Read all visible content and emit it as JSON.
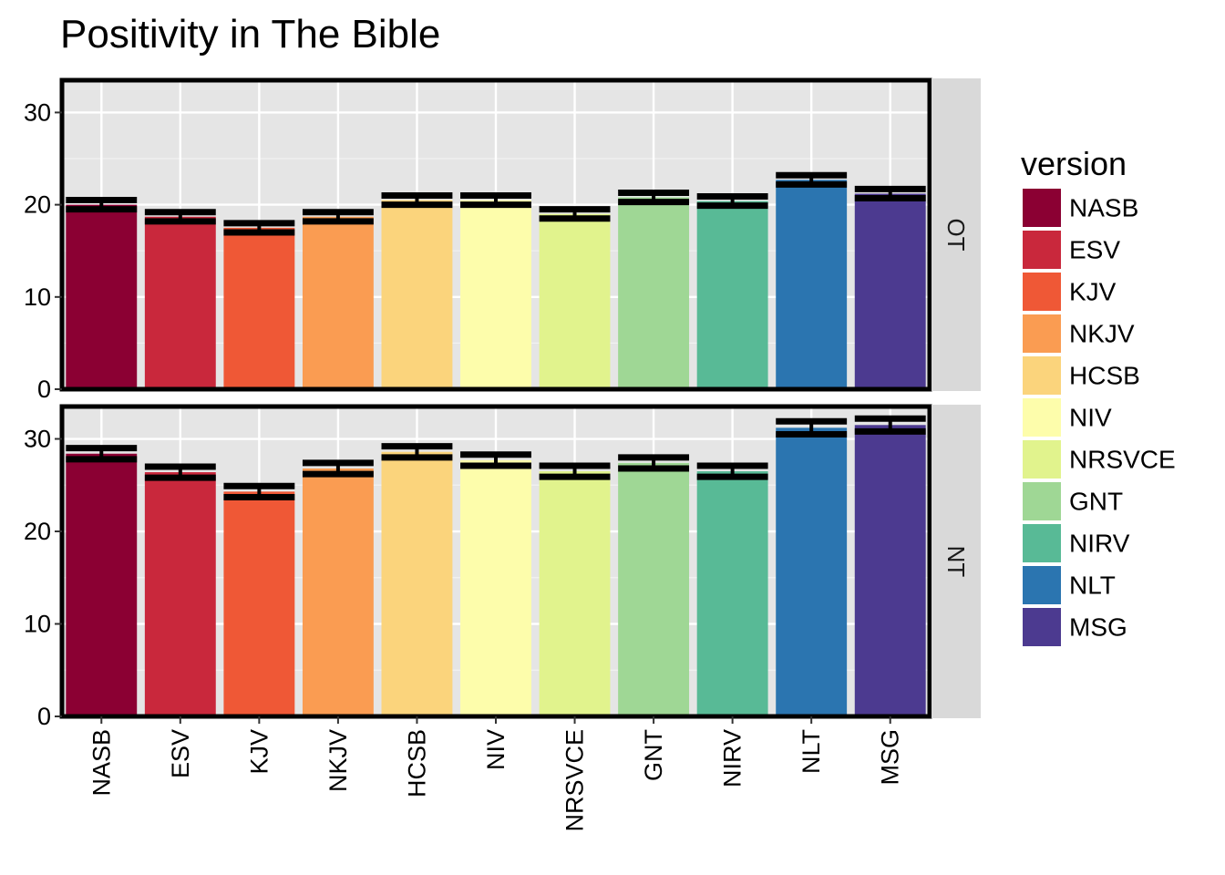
{
  "chart_data": {
    "type": "bar",
    "title": "Positivity in The Bible",
    "xlabel": "",
    "ylabel": "",
    "ylim": [
      0,
      33.5
    ],
    "yticks": [
      0,
      10,
      20,
      30
    ],
    "grid": true,
    "facet_layout": "vertical, strips on right",
    "legend_position": "right",
    "categories": [
      "NASB",
      "ESV",
      "KJV",
      "NKJV",
      "HCSB",
      "NIV",
      "NRSVCE",
      "GNT",
      "NIRV",
      "NLT",
      "MSG"
    ],
    "colors": [
      "#8b0033",
      "#c9283c",
      "#ef5836",
      "#fa9c52",
      "#fbd47c",
      "#fdfdab",
      "#e1f38d",
      "#9fd795",
      "#58ba96",
      "#2b75b0",
      "#4c3a90"
    ],
    "panels": [
      {
        "name": "OT",
        "values": [
          20.0,
          18.7,
          17.5,
          18.7,
          20.5,
          20.5,
          19.0,
          20.8,
          20.4,
          22.7,
          21.2
        ],
        "error_low": [
          19.5,
          18.2,
          17.0,
          18.2,
          20.0,
          20.0,
          18.5,
          20.3,
          19.9,
          22.2,
          20.7
        ],
        "error_high": [
          20.5,
          19.2,
          18.0,
          19.2,
          21.0,
          21.0,
          19.5,
          21.3,
          20.9,
          23.2,
          21.7
        ]
      },
      {
        "name": "NT",
        "values": [
          28.4,
          26.4,
          24.3,
          26.8,
          28.6,
          27.7,
          26.5,
          27.4,
          26.5,
          31.2,
          31.5
        ],
        "error_low": [
          27.8,
          25.8,
          23.7,
          26.2,
          28.0,
          27.1,
          25.9,
          26.8,
          25.9,
          30.5,
          30.8
        ],
        "error_high": [
          29.0,
          27.0,
          24.9,
          27.4,
          29.2,
          28.3,
          27.1,
          28.0,
          27.1,
          31.9,
          32.2
        ]
      }
    ],
    "legend": {
      "title": "version",
      "entries": [
        "NASB",
        "ESV",
        "KJV",
        "NKJV",
        "HCSB",
        "NIV",
        "NRSVCE",
        "GNT",
        "NIRV",
        "NLT",
        "MSG"
      ]
    }
  }
}
